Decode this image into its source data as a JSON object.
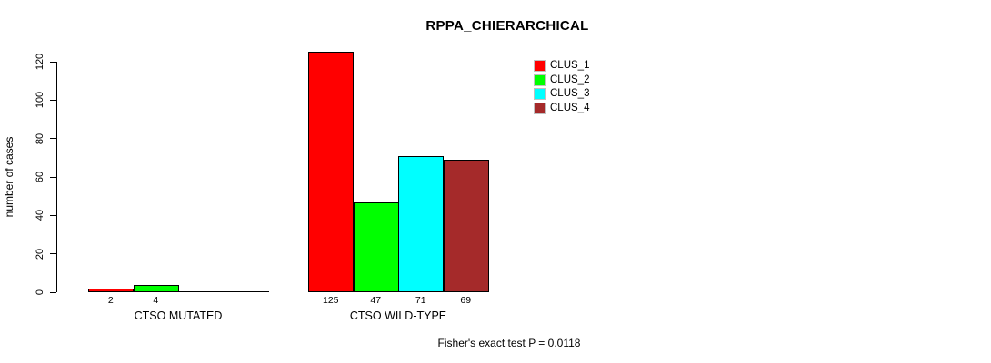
{
  "chart_data": {
    "type": "bar",
    "title": "RPPA_CHIERARCHICAL",
    "ylabel": "number of cases",
    "xlabel": "",
    "ylim": [
      0,
      120
    ],
    "yticks": [
      0,
      20,
      40,
      60,
      80,
      100,
      120
    ],
    "categories": [
      "CTSO MUTATED",
      "CTSO WILD-TYPE"
    ],
    "series": [
      {
        "name": "CLUS_1",
        "color": "#ff0000",
        "values": [
          2,
          125
        ]
      },
      {
        "name": "CLUS_2",
        "color": "#00ff00",
        "values": [
          4,
          47
        ]
      },
      {
        "name": "CLUS_3",
        "color": "#00ffff",
        "values": [
          0,
          71
        ]
      },
      {
        "name": "CLUS_4",
        "color": "#a52a2a",
        "values": [
          0,
          69
        ]
      }
    ],
    "bar_value_labels": [
      [
        "2",
        "4",
        "",
        ""
      ],
      [
        "125",
        "47",
        "71",
        "69"
      ]
    ],
    "legend_entries": [
      "CLUS_1",
      "CLUS_2",
      "CLUS_3",
      "CLUS_4"
    ],
    "legend_position": "top-right-inside",
    "grid": false,
    "annotation": "Fisher's exact test P = 0.0118"
  },
  "colors": {
    "background": "#ffffff",
    "axis": "#000000",
    "text": "#000000"
  }
}
